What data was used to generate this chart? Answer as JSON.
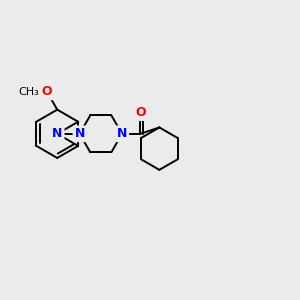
{
  "background_color": "#ebebeb",
  "bond_color": "#000000",
  "atom_colors": {
    "N": "#0000ff",
    "O": "#ff0000",
    "S": "#ccaa00",
    "C": "#000000"
  },
  "font_size": 9,
  "figsize": [
    3.0,
    3.0
  ],
  "dpi": 100
}
